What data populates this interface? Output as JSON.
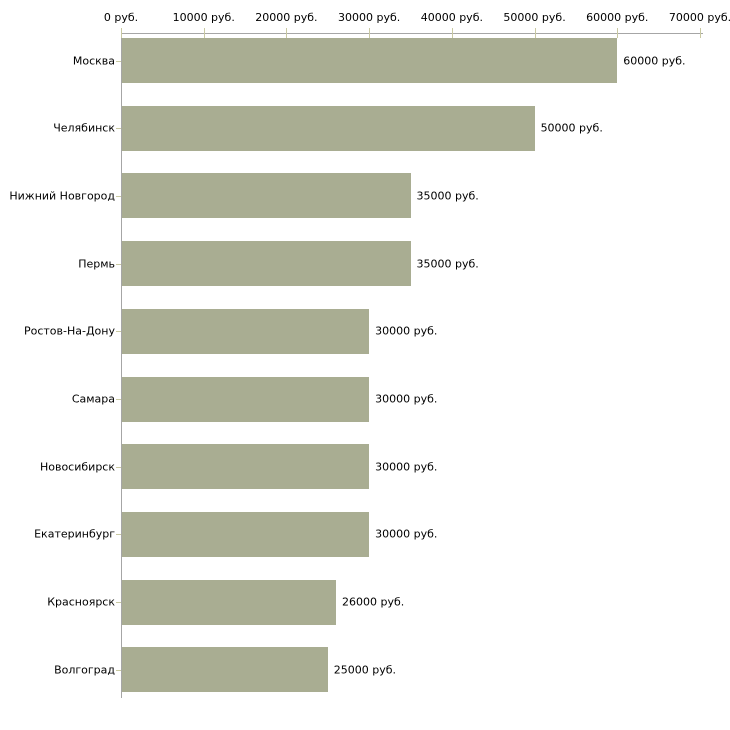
{
  "chart_data": {
    "type": "bar",
    "orientation": "horizontal",
    "title": "",
    "xlabel": "",
    "ylabel": "",
    "unit": "руб.",
    "categories": [
      "Москва",
      "Челябинск",
      "Нижний Новгород",
      "Пермь",
      "Ростов-На-Дону",
      "Самара",
      "Новосибирск",
      "Екатеринбург",
      "Красноярск",
      "Волгоград"
    ],
    "values": [
      60000,
      50000,
      35000,
      35000,
      30000,
      30000,
      30000,
      30000,
      26000,
      25000
    ],
    "value_labels": [
      "60000 руб.",
      "50000 руб.",
      "35000 руб.",
      "35000 руб.",
      "30000 руб.",
      "30000 руб.",
      "30000 руб.",
      "30000 руб.",
      "26000 руб.",
      "25000 руб."
    ],
    "xlim": [
      0,
      70000
    ],
    "x_ticks": [
      {
        "value": 0,
        "label": "0 руб."
      },
      {
        "value": 10000,
        "label": "10000 руб."
      },
      {
        "value": 20000,
        "label": "20000 руб."
      },
      {
        "value": 30000,
        "label": "30000 руб."
      },
      {
        "value": 40000,
        "label": "40000 руб."
      },
      {
        "value": 50000,
        "label": "50000 руб."
      },
      {
        "value": 60000,
        "label": "60000 руб."
      },
      {
        "value": 70000,
        "label": "70000 руб."
      }
    ],
    "grid": false,
    "legend": "none",
    "colors": {
      "bar": "#a9ad92",
      "axis": "#a6a6a6",
      "tick": "#c9c9a2",
      "text": "#000000",
      "background": "#ffffff"
    }
  }
}
